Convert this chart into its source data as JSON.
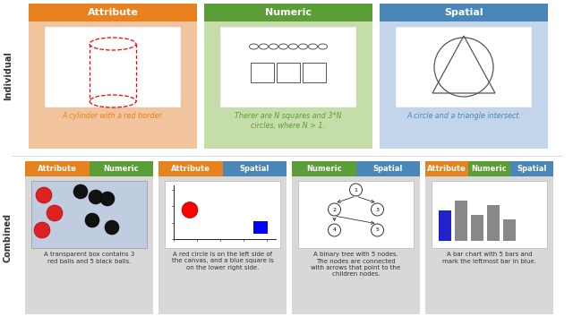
{
  "orange_color": "#E8821E",
  "green_color": "#5B9E38",
  "blue_color": "#4A86B8",
  "orange_light": "#F2C49E",
  "green_light": "#C5DDA8",
  "blue_light": "#C2D5EA",
  "gray_light": "#D8D8D8",
  "white": "#FFFFFF",
  "individual_label": "Individual",
  "combined_label": "Combined",
  "ind_cards": [
    {
      "header": "Attribute",
      "header_color": "#E8821E",
      "bg_color": "#F2C49E",
      "caption": "A cylinder with a red border.",
      "caption_color": "#E8821E",
      "type": "cylinder"
    },
    {
      "header": "Numeric",
      "header_color": "#5B9E38",
      "bg_color": "#C5DDA8",
      "caption": "Therer are N squares and 3*N\ncircles, where N > 1.",
      "caption_color": "#5B9E38",
      "type": "numeric_shapes"
    },
    {
      "header": "Spatial",
      "header_color": "#4A86B8",
      "bg_color": "#C2D5EA",
      "caption": "A circle and a triangle intersect.",
      "caption_color": "#4A86B8",
      "type": "circle_triangle"
    }
  ],
  "comb_cards": [
    {
      "headers": [
        [
          "Attribute",
          "#E8821E"
        ],
        [
          "Numeric",
          "#5B9E38"
        ]
      ],
      "bg_color": "#D8D8D8",
      "caption": "A transparent box contains 3\nred balls and 5 black balls.",
      "caption_color": "#333333",
      "type": "balls_box"
    },
    {
      "headers": [
        [
          "Attribute",
          "#E8821E"
        ],
        [
          "Spatial",
          "#4A86B8"
        ]
      ],
      "bg_color": "#D8D8D8",
      "caption": "A red circle is on the left side of\nthe canvas, and a blue square is\non the lower right side.",
      "caption_color": "#333333",
      "type": "circle_square"
    },
    {
      "headers": [
        [
          "Numeric",
          "#5B9E38"
        ],
        [
          "Spatial",
          "#4A86B8"
        ]
      ],
      "bg_color": "#D8D8D8",
      "caption": "A binary tree with 5 nodes.\nThe nodes are connected\nwith arrows that point to the\nchildren nodes.",
      "caption_color": "#333333",
      "type": "binary_tree"
    },
    {
      "headers": [
        [
          "Attribute",
          "#E8821E"
        ],
        [
          "Numeric",
          "#5B9E38"
        ],
        [
          "Spatial",
          "#4A86B8"
        ]
      ],
      "bg_color": "#D8D8D8",
      "caption": "A bar chart with 5 bars and\nmark the leftmost bar in blue.",
      "caption_color": "#333333",
      "type": "bar_chart"
    }
  ]
}
